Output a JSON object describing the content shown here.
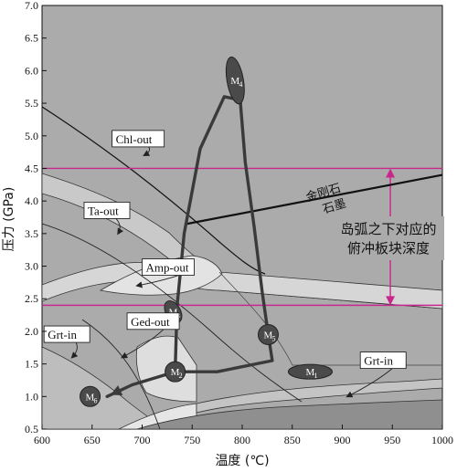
{
  "chart_data": {
    "type": "line",
    "title": "",
    "xlabel": "温度 (℃)",
    "ylabel": "压力 (GPa)",
    "xlim": [
      600,
      1000
    ],
    "ylim": [
      0.5,
      7.0
    ],
    "x_ticks": [
      "600",
      "650",
      "700",
      "750",
      "800",
      "850",
      "900",
      "950",
      "1000"
    ],
    "y_ticks": [
      "0.5",
      "1.0",
      "1.5",
      "2.0",
      "2.5",
      "3.0",
      "3.5",
      "4.0",
      "4.5",
      "5.0",
      "5.5",
      "6.0",
      "6.5",
      "7.0"
    ],
    "colors": {
      "background": "#ababab",
      "path": "#3a3a3a",
      "guide": "#c8288c"
    },
    "guide_lines": [
      {
        "y": 4.5
      },
      {
        "y": 2.4
      }
    ],
    "reaction_labels": [
      {
        "text": "Chl-out",
        "x": 670,
        "y": 4.9,
        "arrow_to": [
          702,
          4.7
        ]
      },
      {
        "text": "Ta-out",
        "x": 642,
        "y": 3.8,
        "arrow_to": [
          676,
          3.5
        ]
      },
      {
        "text": "Amp-out",
        "x": 700,
        "y": 2.93,
        "arrow_to": [
          695,
          2.7
        ]
      },
      {
        "text": "Ged-out",
        "x": 685,
        "y": 2.1,
        "arrow_to": [
          680,
          1.6
        ]
      },
      {
        "text": "Grt-in",
        "x": 602,
        "y": 1.9,
        "arrow_to": [
          630,
          1.6
        ]
      },
      {
        "text": "Grt-in",
        "x": 918,
        "y": 1.5,
        "arrow_to": [
          905,
          1.0
        ]
      }
    ],
    "diamond_graphite": {
      "labels": [
        "金刚石",
        "石墨"
      ],
      "x": [
        745,
        1000
      ],
      "y": [
        3.65,
        4.4
      ]
    },
    "depth_annotation": {
      "lines": [
        "岛弧之下对应的",
        "俯冲板块深度"
      ],
      "x": 948,
      "y_range": [
        2.4,
        4.5
      ]
    },
    "points": [
      {
        "label": "M",
        "sub": "1",
        "x": 868,
        "y": 1.38
      },
      {
        "label": "M",
        "sub": "2",
        "x": 733,
        "y": 1.38
      },
      {
        "label": "M",
        "sub": "3",
        "x": 731,
        "y": 2.3
      },
      {
        "label": "M",
        "sub": "4",
        "x": 793,
        "y": 5.85
      },
      {
        "label": "M",
        "sub": "5",
        "x": 826,
        "y": 1.95
      },
      {
        "label": "M",
        "sub": "6",
        "x": 648,
        "y": 1.0
      }
    ],
    "pt_path": {
      "x": [
        733,
        735,
        742,
        758,
        782,
        798,
        803,
        812,
        820,
        826,
        830,
        775,
        733,
        690,
        665
      ],
      "y": [
        1.38,
        2.4,
        3.5,
        4.8,
        5.6,
        5.55,
        4.6,
        3.6,
        2.6,
        1.95,
        1.55,
        1.38,
        1.38,
        1.18,
        1.0
      ]
    }
  }
}
